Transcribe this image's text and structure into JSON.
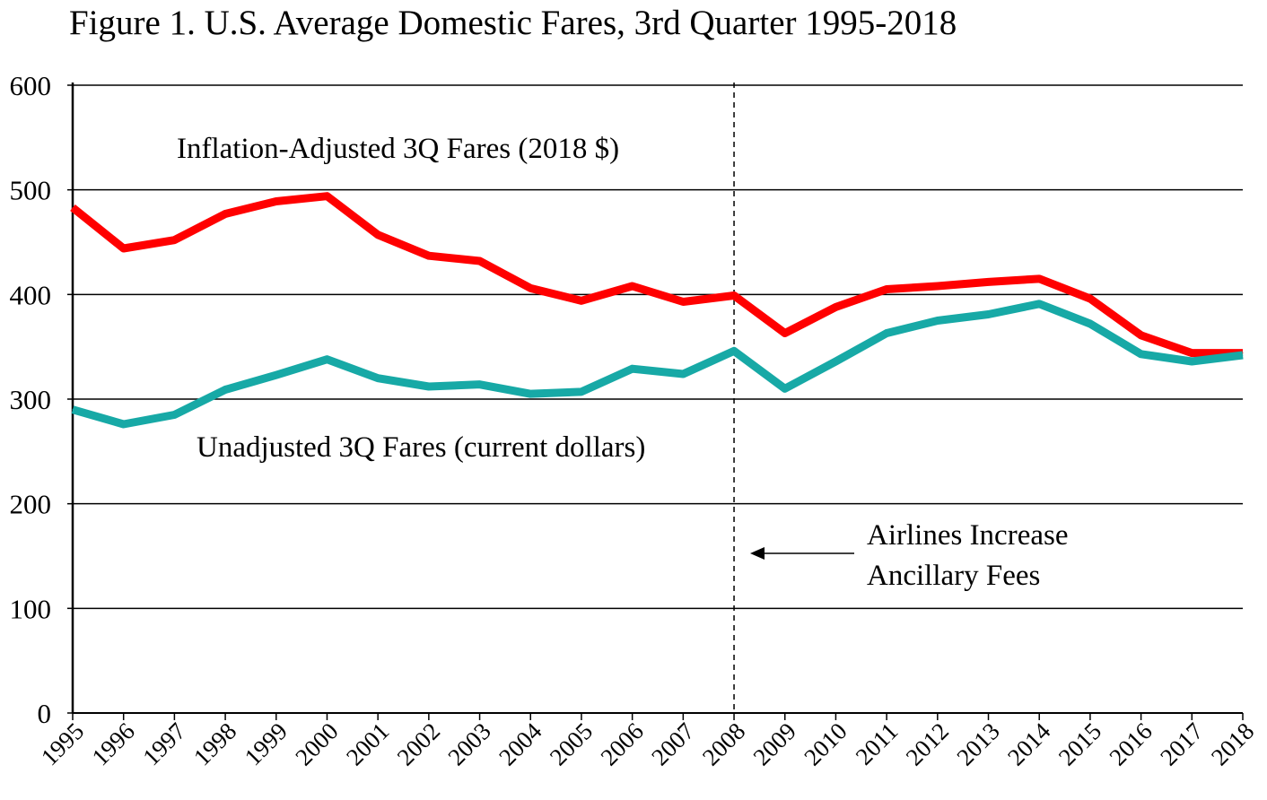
{
  "chart_data": {
    "type": "line",
    "title": "Figure 1. U.S. Average Domestic Fares, 3rd Quarter 1995-2018",
    "xlabel": "",
    "ylabel": "",
    "ylim": [
      0,
      600
    ],
    "yticks": [
      "0",
      "100",
      "200",
      "300",
      "400",
      "500",
      "600"
    ],
    "x": [
      "1995",
      "1996",
      "1997",
      "1998",
      "1999",
      "2000",
      "2001",
      "2002",
      "2003",
      "2004",
      "2005",
      "2006",
      "2007",
      "2008",
      "2009",
      "2010",
      "2011",
      "2012",
      "2013",
      "2014",
      "2015",
      "2016",
      "2017",
      "2018"
    ],
    "grid": true,
    "series": [
      {
        "name": "Inflation-Adjusted 3Q Fares (2018 $)",
        "color": "#ff0000",
        "values": [
          483,
          444,
          452,
          477,
          489,
          494,
          457,
          437,
          432,
          406,
          394,
          408,
          393,
          399,
          363,
          388,
          405,
          408,
          412,
          415,
          396,
          361,
          344,
          344
        ]
      },
      {
        "name": "Unadjusted 3Q Fares (current dollars)",
        "color": "#17a9a6",
        "values": [
          290,
          276,
          285,
          309,
          323,
          338,
          320,
          312,
          314,
          305,
          307,
          329,
          324,
          346,
          310,
          336,
          363,
          375,
          381,
          391,
          372,
          343,
          336,
          342
        ]
      }
    ],
    "annotations": {
      "marker_year": "2008",
      "line1": "Airlines Increase",
      "line2": "Ancillary Fees"
    }
  }
}
